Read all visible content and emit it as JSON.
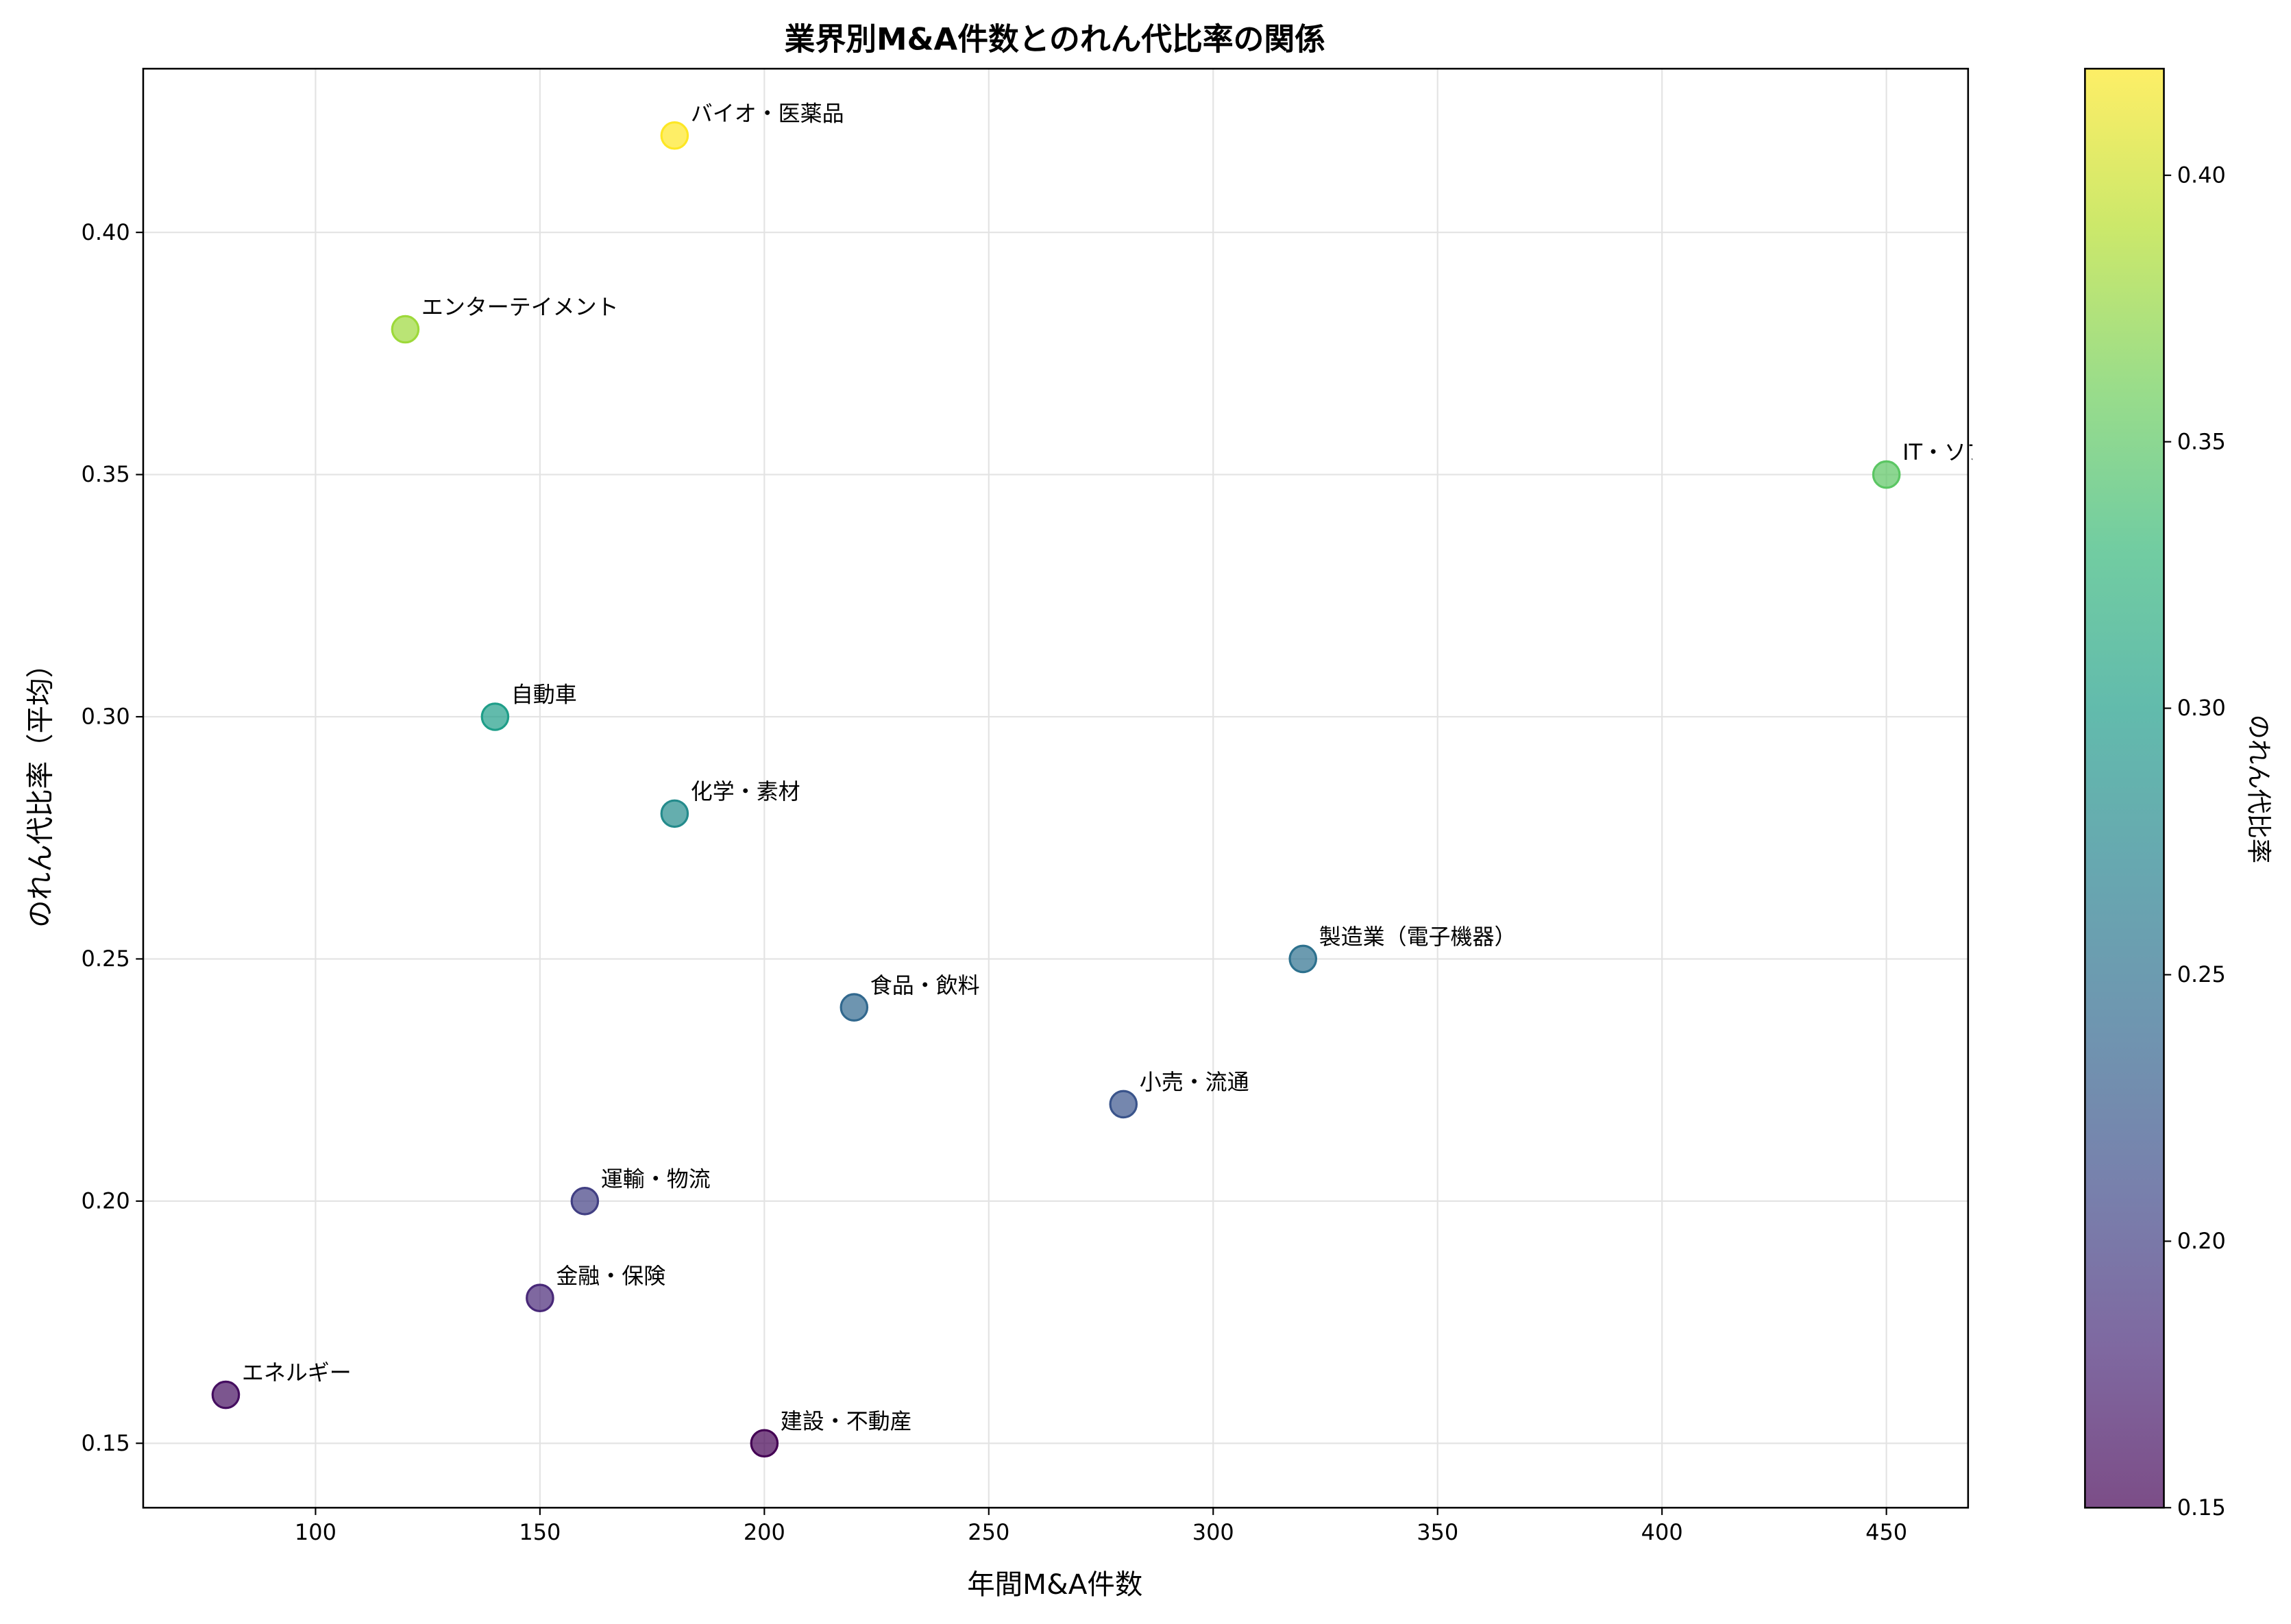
{
  "chart_data": {
    "type": "scatter",
    "title": "業界別M&A件数とのれん代比率の関係",
    "xlabel": "年間M&A件数",
    "ylabel": "のれん代比率（平均）",
    "xlim": [
      61.6,
      468.2
    ],
    "ylim": [
      0.1367,
      0.4338
    ],
    "xticks": [
      100,
      150,
      200,
      250,
      300,
      350,
      400,
      450
    ],
    "yticks": [
      0.15,
      0.2,
      0.25,
      0.3,
      0.35,
      0.4
    ],
    "grid": true,
    "colormap": "viridis",
    "alpha": 0.7,
    "colorbar": {
      "label": "のれん代比率",
      "range": [
        0.15,
        0.42
      ],
      "ticks": [
        0.15,
        0.2,
        0.25,
        0.3,
        0.35,
        0.4
      ]
    },
    "points": [
      {
        "label": "バイオ・医薬品",
        "x": 180,
        "y": 0.42
      },
      {
        "label": "エンターテイメント",
        "x": 120,
        "y": 0.38
      },
      {
        "label": "IT・ソフトウェア",
        "x": 450,
        "y": 0.35
      },
      {
        "label": "自動車",
        "x": 140,
        "y": 0.3
      },
      {
        "label": "化学・素材",
        "x": 180,
        "y": 0.28
      },
      {
        "label": "製造業（電子機器）",
        "x": 320,
        "y": 0.25
      },
      {
        "label": "食品・飲料",
        "x": 220,
        "y": 0.24
      },
      {
        "label": "小売・流通",
        "x": 280,
        "y": 0.22
      },
      {
        "label": "運輸・物流",
        "x": 160,
        "y": 0.2
      },
      {
        "label": "金融・保険",
        "x": 150,
        "y": 0.18
      },
      {
        "label": "エネルギー",
        "x": 80,
        "y": 0.16
      },
      {
        "label": "建設・不動産",
        "x": 200,
        "y": 0.15
      }
    ]
  }
}
